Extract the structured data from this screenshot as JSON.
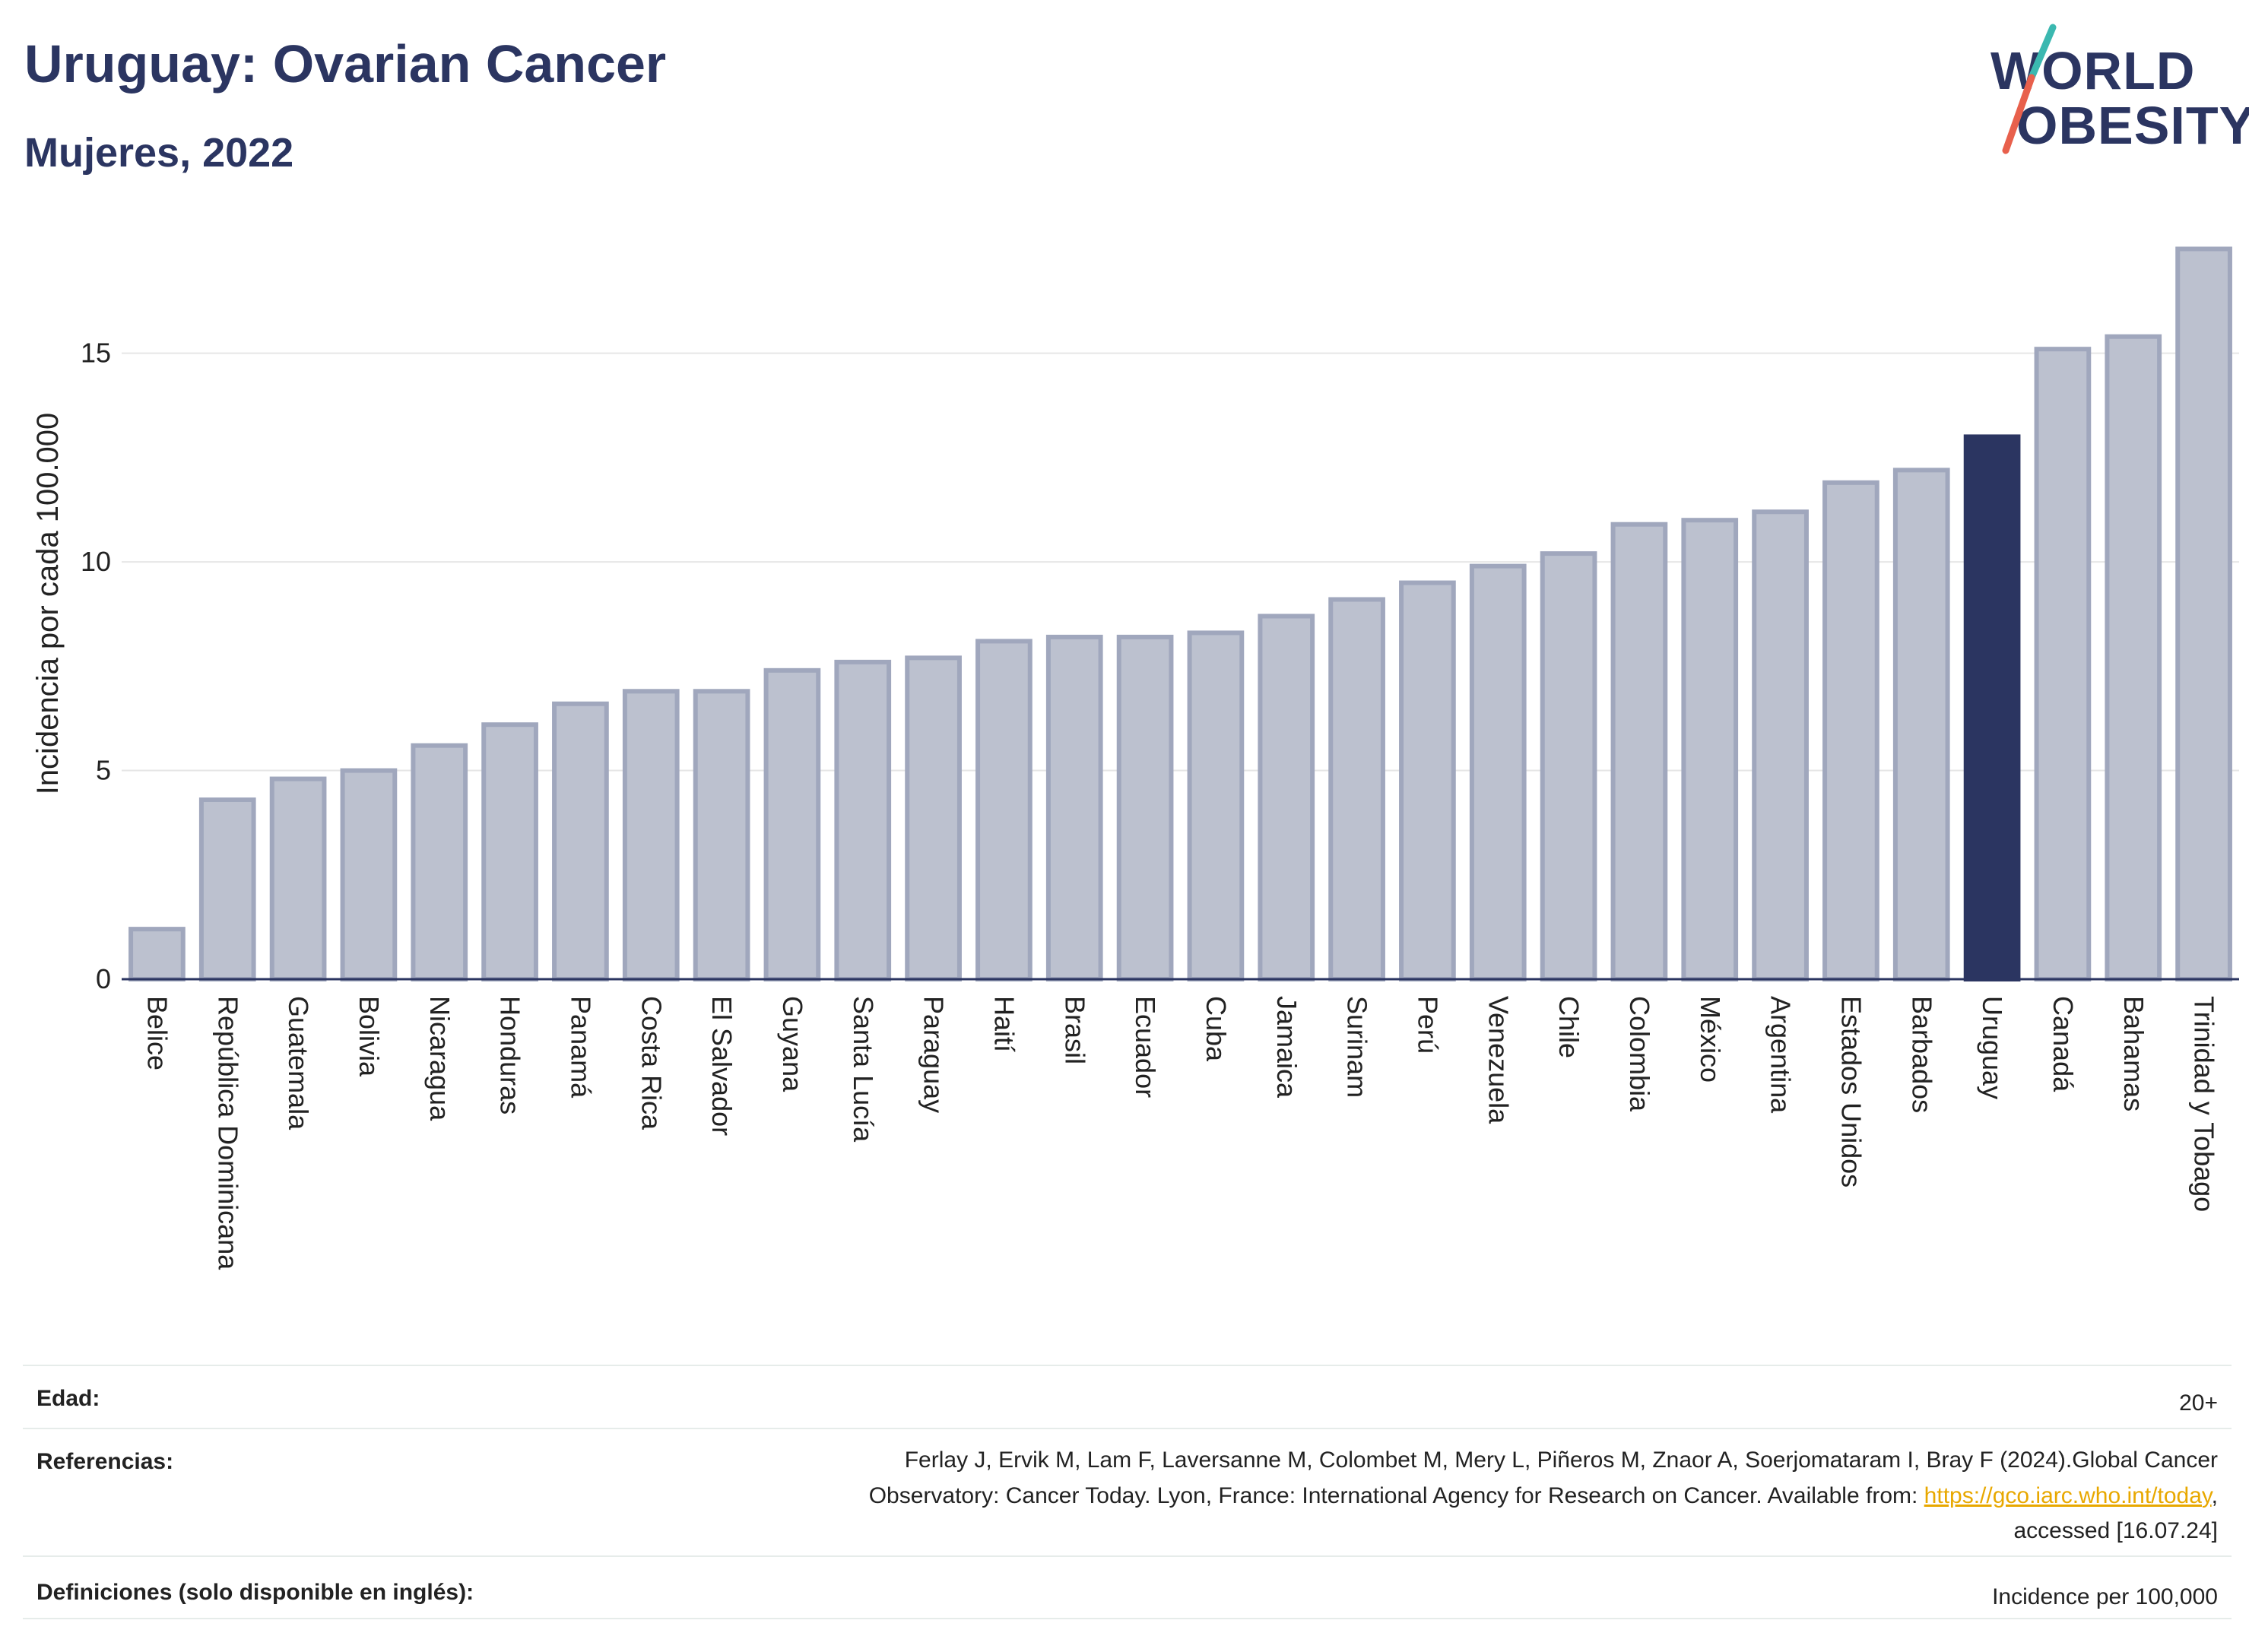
{
  "header": {
    "title": "Uruguay: Ovarian Cancer",
    "subtitle": "Mujeres, 2022"
  },
  "logo": {
    "line1": "WORLD",
    "line2": "OBESITY",
    "brand_color": "#2b3561",
    "accent_colors": [
      "#3bb8b0",
      "#e8604c"
    ]
  },
  "chart_data": {
    "type": "bar",
    "title": "Uruguay: Ovarian Cancer",
    "subtitle": "Mujeres, 2022",
    "xlabel": "",
    "ylabel": "Incidencia por cada 100.000",
    "ylim": [
      0,
      18
    ],
    "yticks": [
      0,
      5,
      10,
      15
    ],
    "grid": true,
    "highlight": "Uruguay",
    "colors": {
      "bar": "#bcc1cf",
      "bar_border": "#a0a7bd",
      "highlight": "#2b3561",
      "grid": "#e6e6e6",
      "axis": "#2b3561"
    },
    "categories": [
      "Belice",
      "República Dominicana",
      "Guatemala",
      "Bolivia",
      "Nicaragua",
      "Honduras",
      "Panamá",
      "Costa Rica",
      "El Salvador",
      "Guyana",
      "Santa Lucía",
      "Paraguay",
      "Haití",
      "Brasil",
      "Ecuador",
      "Cuba",
      "Jamaica",
      "Surinam",
      "Perú",
      "Venezuela",
      "Chile",
      "Colombia",
      "México",
      "Argentina",
      "Estados Unidos",
      "Barbados",
      "Uruguay",
      "Canadá",
      "Bahamas",
      "Trinidad y Tobago"
    ],
    "values": [
      1.2,
      4.3,
      4.8,
      5.0,
      5.6,
      6.1,
      6.6,
      6.9,
      6.9,
      7.4,
      7.6,
      7.7,
      8.1,
      8.2,
      8.2,
      8.3,
      8.7,
      9.1,
      9.5,
      9.9,
      10.2,
      10.9,
      11.0,
      11.2,
      11.9,
      12.2,
      13.0,
      15.1,
      15.4,
      17.5
    ]
  },
  "footer": {
    "age_label": "Edad:",
    "age_value": "20+",
    "references_label": "Referencias:",
    "references_line1": "Ferlay J, Ervik M, Lam F, Laversanne M, Colombet M, Mery L, Piñeros M, Znaor A, Soerjomataram I, Bray F (2024).Global Cancer",
    "references_line2_prefix": "Observatory: Cancer Today. Lyon, France: International Agency for Research on Cancer. Available from: ",
    "references_link": "https://gco.iarc.who.int/today",
    "references_line2_suffix": ",",
    "references_line3": "accessed [16.07.24]",
    "definitions_label": "Definiciones (solo disponible en inglés):",
    "definitions_value": "Incidence per 100,000"
  }
}
